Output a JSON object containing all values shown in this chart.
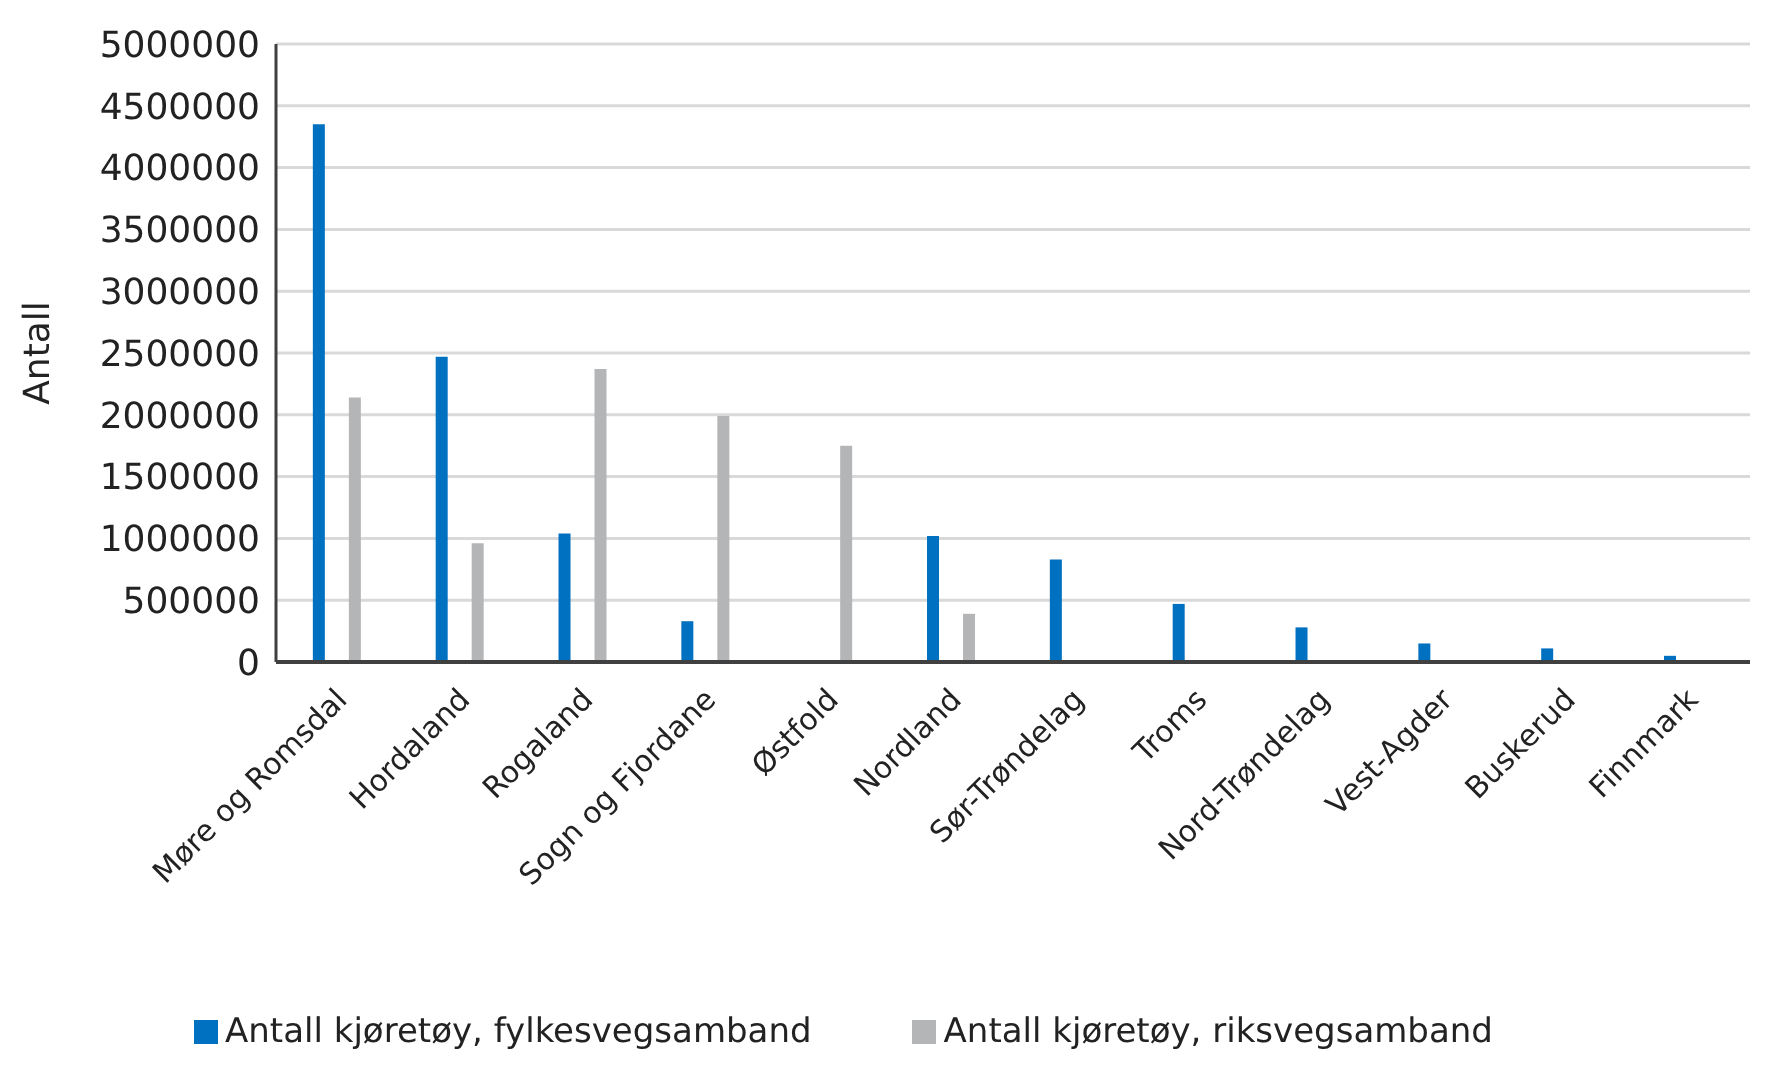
{
  "chart_data": {
    "type": "bar",
    "ylabel": "Antall",
    "categories": [
      "Møre og Romsdal",
      "Hordaland",
      "Rogaland",
      "Sogn og Fjordane",
      "Østfold",
      "Nordland",
      "Sør-Trøndelag",
      "Troms",
      "Nord-Trøndelag",
      "Vest-Agder",
      "Buskerud",
      "Finnmark"
    ],
    "series": [
      {
        "name": "Antall kjøretøy, fylkesvegsamband",
        "color": "#0070c0",
        "values": [
          4350000,
          2470000,
          1040000,
          330000,
          null,
          1020000,
          830000,
          470000,
          280000,
          150000,
          110000,
          50000
        ]
      },
      {
        "name": "Antall kjøretøy, riksvegsamband",
        "color": "#b4b5b7",
        "values": [
          2140000,
          960000,
          2370000,
          1990000,
          1750000,
          390000,
          null,
          null,
          null,
          null,
          null,
          null
        ]
      }
    ],
    "ylim": [
      0,
      5000000
    ],
    "yticks": [
      0,
      500000,
      1000000,
      1500000,
      2000000,
      2500000,
      3000000,
      3500000,
      4000000,
      4500000,
      5000000
    ],
    "grid": "y",
    "legend": "bottom"
  }
}
